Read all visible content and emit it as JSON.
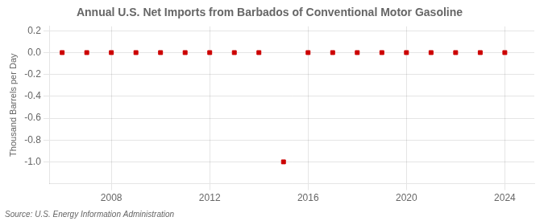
{
  "chart_data": {
    "type": "scatter",
    "title": "Annual U.S. Net Imports from Barbados of Conventional Motor Gasoline",
    "ylabel": "Thousand Barrels per Day",
    "annotations": [
      "Source: U.S. Energy Information Administration"
    ],
    "x": [
      2006,
      2007,
      2008,
      2009,
      2010,
      2011,
      2012,
      2013,
      2014,
      2015,
      2016,
      2017,
      2018,
      2019,
      2020,
      2021,
      2022,
      2023,
      2024
    ],
    "values": [
      0,
      0,
      0,
      0,
      0,
      0,
      0,
      0,
      0,
      -1.0,
      0,
      0,
      0,
      0,
      0,
      0,
      0,
      0,
      0
    ],
    "color": "#cc0000",
    "marker": "square",
    "xlim": [
      2005.5,
      2025.2
    ],
    "xticks": [
      2008,
      2012,
      2016,
      2020,
      2024
    ],
    "ylim": [
      -1.2,
      0.24
    ],
    "yticks": [
      {
        "value": -1.0,
        "label": "-1.0"
      },
      -0.8,
      -0.6,
      -0.4,
      -0.2,
      {
        "value": 0.0,
        "label": "0.0"
      },
      0.2
    ],
    "grid": true
  }
}
